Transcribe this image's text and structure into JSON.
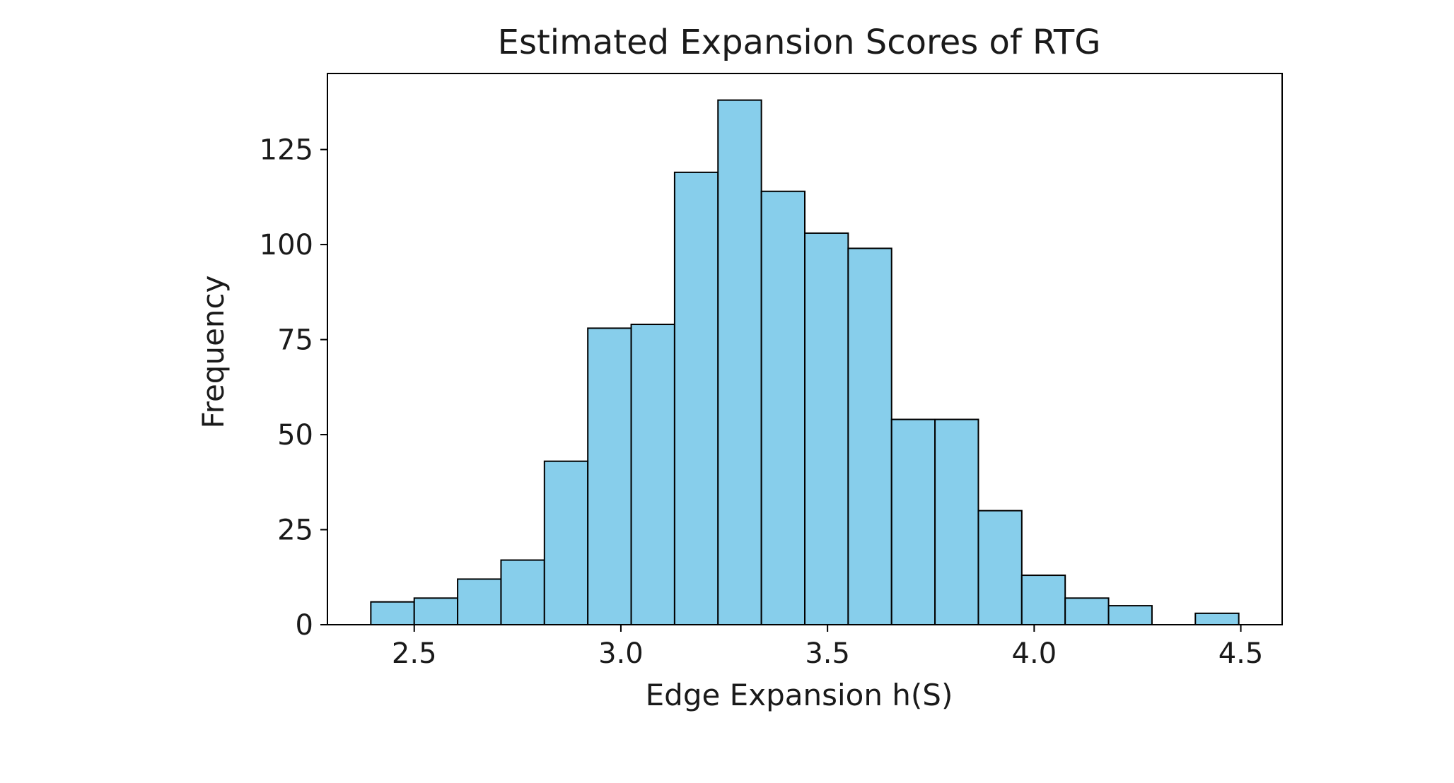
{
  "chart_data": {
    "type": "bar",
    "subtype": "histogram",
    "title": "Estimated Expansion Scores of RTG",
    "xlabel": "Edge Expansion h(S)",
    "ylabel": "Frequency",
    "bin_edges": [
      2.395,
      2.5,
      2.605,
      2.71,
      2.815,
      2.92,
      3.025,
      3.13,
      3.235,
      3.34,
      3.445,
      3.55,
      3.655,
      3.76,
      3.865,
      3.97,
      4.075,
      4.18,
      4.285,
      4.39,
      4.495
    ],
    "values": [
      6,
      7,
      12,
      17,
      43,
      78,
      79,
      119,
      138,
      114,
      103,
      99,
      54,
      54,
      30,
      13,
      7,
      5,
      0,
      3
    ],
    "xlim": [
      2.29,
      4.6
    ],
    "ylim": [
      0,
      145
    ],
    "xticks": [
      2.5,
      3.0,
      3.5,
      4.0,
      4.5
    ],
    "xtick_labels": [
      "2.5",
      "3.0",
      "3.5",
      "4.0",
      "4.5"
    ],
    "yticks": [
      0,
      25,
      50,
      75,
      100,
      125
    ],
    "ytick_labels": [
      "0",
      "25",
      "50",
      "75",
      "100",
      "125"
    ],
    "bar_color": "#87ceeb",
    "edge_color": "#000000",
    "grid": false,
    "legend": false
  }
}
